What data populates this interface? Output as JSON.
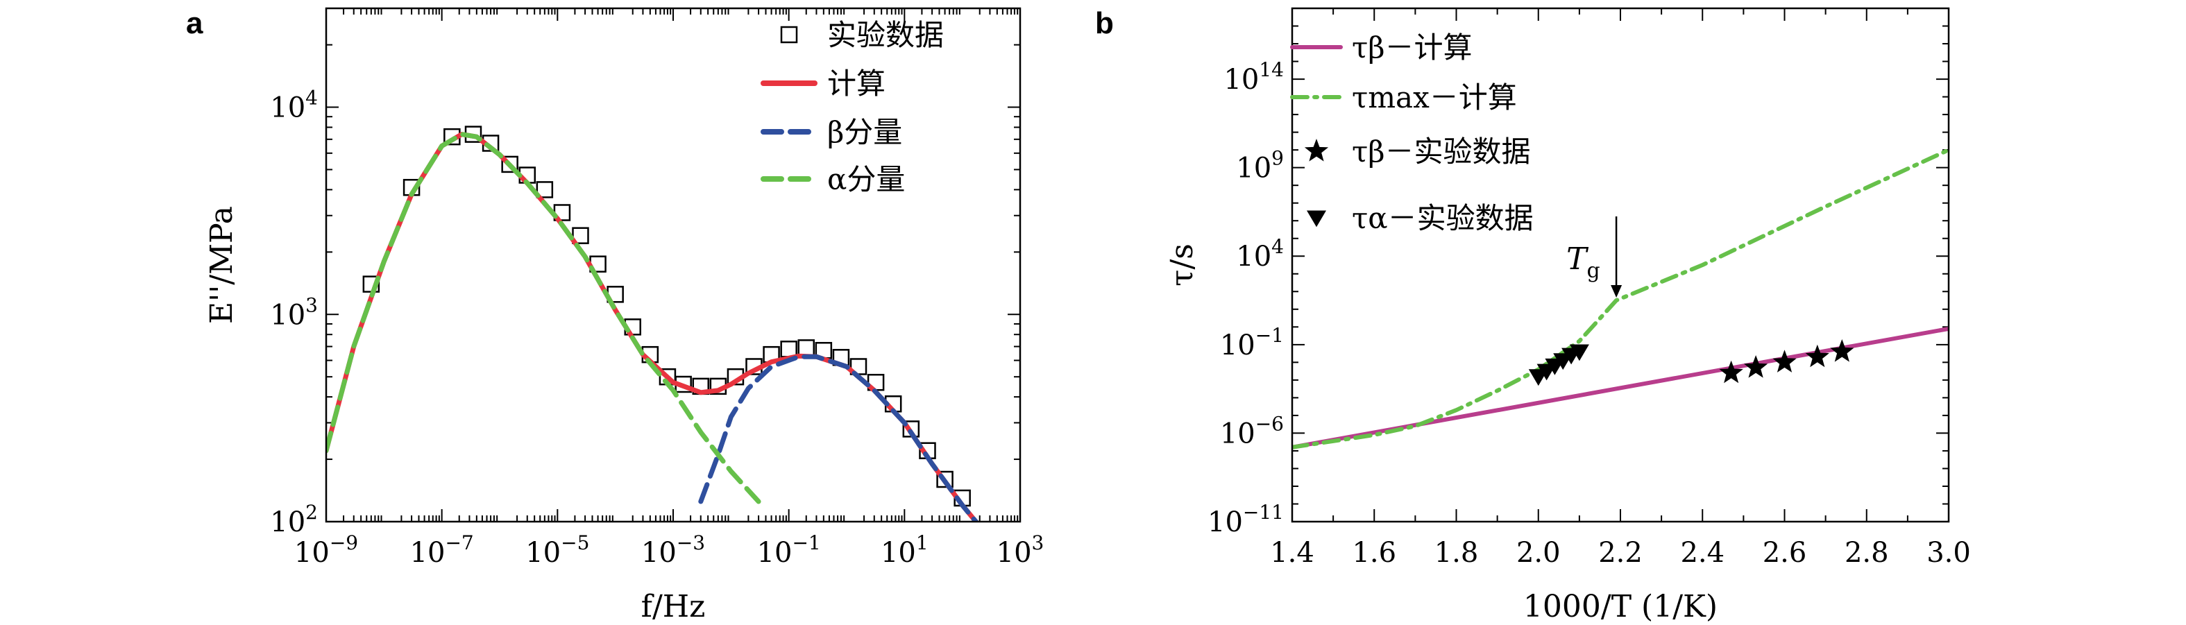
{
  "chart_data": [
    {
      "panel": "a",
      "type": "line",
      "xlabel": "f/Hz",
      "ylabel": "E''/MPa",
      "xscale": "log",
      "yscale": "log",
      "xlim": [
        1e-09,
        1000
      ],
      "ylim": [
        100,
        30000
      ],
      "xticks": [
        {
          "value": 1e-09,
          "label": "10^-9"
        },
        {
          "value": 1e-07,
          "label": "10^-7"
        },
        {
          "value": 1e-05,
          "label": "10^-5"
        },
        {
          "value": 0.001,
          "label": "10^-3"
        },
        {
          "value": 0.1,
          "label": "10^-1"
        },
        {
          "value": 10,
          "label": "10^1"
        },
        {
          "value": 1000,
          "label": "10^3"
        }
      ],
      "yticks": [
        {
          "value": 100,
          "label": "10^2"
        },
        {
          "value": 1000,
          "label": "10^3"
        },
        {
          "value": 10000,
          "label": "10^4"
        }
      ],
      "legend_position": "top-right",
      "series": [
        {
          "name": "实验数据",
          "kind": "scatter",
          "marker": "open-square",
          "color": "#000000",
          "points": [
            [
              6e-09,
              1400
            ],
            [
              3e-08,
              4100
            ],
            [
              1.5e-07,
              7200
            ],
            [
              3.5e-07,
              7400
            ],
            [
              7e-07,
              6700
            ],
            [
              1.5e-06,
              5300
            ],
            [
              3e-06,
              4700
            ],
            [
              6e-06,
              4000
            ],
            [
              1.2e-05,
              3100
            ],
            [
              2.5e-05,
              2400
            ],
            [
              5e-05,
              1750
            ],
            [
              0.0001,
              1250
            ],
            [
              0.0002,
              870
            ],
            [
              0.0004,
              640
            ],
            [
              0.0008,
              500
            ],
            [
              0.0015,
              460
            ],
            [
              0.003,
              450
            ],
            [
              0.006,
              450
            ],
            [
              0.012,
              500
            ],
            [
              0.025,
              560
            ],
            [
              0.05,
              640
            ],
            [
              0.1,
              680
            ],
            [
              0.2,
              690
            ],
            [
              0.4,
              670
            ],
            [
              0.8,
              620
            ],
            [
              1.6,
              560
            ],
            [
              3.2,
              470
            ],
            [
              6.4,
              370
            ],
            [
              13,
              280
            ],
            [
              25,
              220
            ],
            [
              50,
              160
            ],
            [
              100,
              130
            ]
          ]
        },
        {
          "name": "计算",
          "kind": "line",
          "style": "solid",
          "color": "#e8343f",
          "points": [
            [
              1e-09,
              220
            ],
            [
              3e-09,
              700
            ],
            [
              1e-08,
              1800
            ],
            [
              3e-08,
              3800
            ],
            [
              1e-07,
              6500
            ],
            [
              2.2e-07,
              7400
            ],
            [
              4e-07,
              7200
            ],
            [
              1e-06,
              5900
            ],
            [
              3e-06,
              4300
            ],
            [
              1e-05,
              2900
            ],
            [
              3e-05,
              1900
            ],
            [
              0.0001,
              1050
            ],
            [
              0.0003,
              640
            ],
            [
              0.001,
              470
            ],
            [
              0.003,
              420
            ],
            [
              0.006,
              430
            ],
            [
              0.01,
              460
            ],
            [
              0.02,
              520
            ],
            [
              0.05,
              590
            ],
            [
              0.15,
              630
            ],
            [
              0.3,
              625
            ],
            [
              1,
              560
            ],
            [
              3,
              430
            ],
            [
              10,
              300
            ],
            [
              30,
              190
            ],
            [
              100,
              120
            ],
            [
              200,
              95
            ]
          ]
        },
        {
          "name": "β分量",
          "kind": "line",
          "style": "dashed",
          "color": "#2f4f9e",
          "points": [
            [
              0.003,
              125
            ],
            [
              0.006,
              210
            ],
            [
              0.01,
              320
            ],
            [
              0.02,
              440
            ],
            [
              0.05,
              560
            ],
            [
              0.15,
              625
            ],
            [
              0.3,
              625
            ],
            [
              1,
              560
            ],
            [
              3,
              430
            ],
            [
              10,
              300
            ],
            [
              30,
              190
            ],
            [
              100,
              120
            ],
            [
              200,
              95
            ]
          ]
        },
        {
          "name": "α分量",
          "kind": "line",
          "style": "dashed",
          "color": "#66c04a",
          "points": [
            [
              1e-09,
              220
            ],
            [
              3e-09,
              700
            ],
            [
              1e-08,
              1800
            ],
            [
              3e-08,
              3800
            ],
            [
              1e-07,
              6500
            ],
            [
              2.2e-07,
              7400
            ],
            [
              4e-07,
              7200
            ],
            [
              1e-06,
              5900
            ],
            [
              3e-06,
              4300
            ],
            [
              1e-05,
              2900
            ],
            [
              3e-05,
              1900
            ],
            [
              0.0001,
              1050
            ],
            [
              0.0003,
              640
            ],
            [
              0.001,
              430
            ],
            [
              0.003,
              270
            ],
            [
              0.01,
              175
            ],
            [
              0.03,
              125
            ]
          ]
        }
      ]
    },
    {
      "panel": "b",
      "type": "line",
      "xlabel": "1000/T (1/K)",
      "ylabel": "τ/s",
      "yscale": "log",
      "xlim": [
        1.4,
        3.0
      ],
      "ylim_log10": [
        -11,
        18
      ],
      "xticks": [
        1.4,
        1.6,
        1.8,
        2.0,
        2.2,
        2.4,
        2.6,
        2.8,
        3.0
      ],
      "yticks": [
        {
          "exp": -11,
          "label": "10^-11"
        },
        {
          "exp": -6,
          "label": "10^-6"
        },
        {
          "exp": -1,
          "label": "10^-1"
        },
        {
          "exp": 4,
          "label": "10^4"
        },
        {
          "exp": 9,
          "label": "10^9"
        },
        {
          "exp": 14,
          "label": "10^14"
        }
      ],
      "legend_position": "top-left",
      "annotation": {
        "text": "Tg",
        "x": 2.19,
        "log10_y": 1.5
      },
      "series": [
        {
          "name": "τβ－计算",
          "kind": "line",
          "style": "solid",
          "color": "#b83d8c",
          "points_log10": [
            [
              1.4,
              -6.8
            ],
            [
              3.0,
              -0.1
            ]
          ]
        },
        {
          "name": "τmax－计算",
          "kind": "line",
          "style": "dashdot",
          "color": "#66c04a",
          "points_log10": [
            [
              1.4,
              -6.8
            ],
            [
              1.6,
              -6.1
            ],
            [
              1.7,
              -5.6
            ],
            [
              1.8,
              -4.7
            ],
            [
              1.9,
              -3.6
            ],
            [
              2.0,
              -2.4
            ],
            [
              2.1,
              -0.8
            ],
            [
              2.19,
              1.5
            ],
            [
              2.4,
              3.5
            ],
            [
              2.7,
              6.8
            ],
            [
              3.0,
              10.0
            ]
          ]
        },
        {
          "name": "τβ－实验数据",
          "kind": "scatter",
          "marker": "star",
          "color": "#000000",
          "points_log10": [
            [
              2.47,
              -2.6
            ],
            [
              2.53,
              -2.3
            ],
            [
              2.6,
              -2.0
            ],
            [
              2.68,
              -1.7
            ],
            [
              2.74,
              -1.4
            ]
          ]
        },
        {
          "name": "τα－实验数据",
          "kind": "scatter",
          "marker": "down-triangle",
          "color": "#000000",
          "points_log10": [
            [
              2.0,
              -2.8
            ],
            [
              2.02,
              -2.5
            ],
            [
              2.04,
              -2.2
            ],
            [
              2.06,
              -1.9
            ],
            [
              2.08,
              -1.6
            ],
            [
              2.1,
              -1.4
            ]
          ]
        }
      ]
    }
  ]
}
